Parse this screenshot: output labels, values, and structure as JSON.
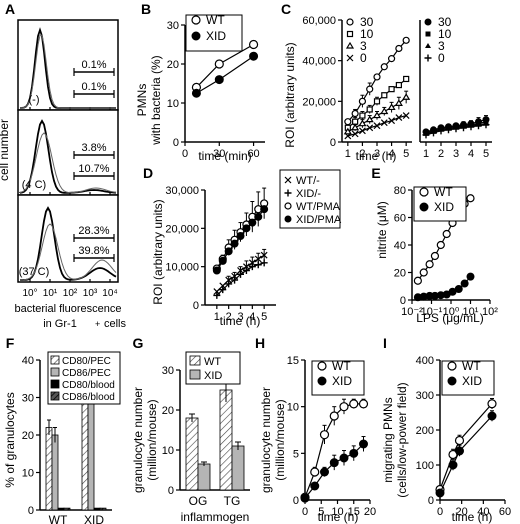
{
  "chart_data": [
    {
      "panel": "A",
      "type": "histogram",
      "xlabel": "bacterial fluorescence",
      "xlabel2": "in Gr-1",
      "ylabel": "cell number",
      "xticks": [
        "10°",
        "10¹",
        "10²",
        "10³",
        "10⁴"
      ],
      "subpanels": [
        {
          "label": "(-)",
          "gate_upper": "0.1%",
          "gate_lower": "0.1%"
        },
        {
          "label": "(4 C)",
          "gate_upper": "3.8%",
          "gate_lower": "10.7%"
        },
        {
          "label": "(37 C)",
          "gate_upper": "28.3%",
          "gate_lower": "39.8%"
        }
      ]
    },
    {
      "panel": "B",
      "type": "line",
      "xlabel": "time (min)",
      "ylabel": "PMNs with bacteria (%)",
      "xlim": [
        0,
        70
      ],
      "ylim": [
        0,
        30
      ],
      "xticks": [
        0,
        30,
        60
      ],
      "yticks": [
        0,
        10,
        20,
        30
      ],
      "series": [
        {
          "name": "WT",
          "marker": "open",
          "x": [
            10,
            30,
            60
          ],
          "y": [
            14,
            20,
            25
          ]
        },
        {
          "name": "XID",
          "marker": "filled",
          "x": [
            10,
            30,
            60
          ],
          "y": [
            12.5,
            16,
            22
          ]
        }
      ]
    },
    {
      "panel": "C",
      "type": "line",
      "xlabel": "time (h)",
      "ylabel": "ROI (arbitrary units)",
      "ylim": [
        0,
        60000
      ],
      "yticks": [
        0,
        20000,
        40000,
        60000
      ],
      "xticks": [
        1,
        2,
        3,
        4,
        5
      ],
      "groups": [
        {
          "legend": [
            "30",
            "10",
            "3",
            "0"
          ],
          "series": [
            {
              "name": "30",
              "marker": "circle-open",
              "x": [
                1,
                1.5,
                2,
                2.5,
                3,
                3.5,
                4,
                4.5,
                5
              ],
              "y": [
                10000,
                14000,
                20000,
                26000,
                32000,
                37000,
                41000,
                46000,
                50000
              ],
              "err": [
                0,
                2000,
                3000,
                3000,
                0,
                0,
                0,
                0,
                0
              ]
            },
            {
              "name": "10",
              "marker": "square-open",
              "x": [
                1,
                1.5,
                2,
                2.5,
                3,
                3.5,
                4,
                4.5,
                5
              ],
              "y": [
                7000,
                10000,
                13000,
                16000,
                20000,
                23000,
                26000,
                28000,
                31000
              ],
              "err": [
                0,
                2000,
                2000,
                2000,
                2000,
                0,
                0,
                0,
                0
              ]
            },
            {
              "name": "3",
              "marker": "triangle-open",
              "x": [
                1,
                1.5,
                2,
                2.5,
                3,
                3.5,
                4,
                4.5,
                5
              ],
              "y": [
                5000,
                7000,
                9000,
                11000,
                13000,
                15000,
                17000,
                19000,
                22000
              ],
              "err": [
                0,
                1500,
                2000,
                2000,
                2000,
                2000,
                2500,
                3000,
                3000
              ]
            },
            {
              "name": "0",
              "marker": "cross",
              "x": [
                1,
                1.5,
                2,
                2.5,
                3,
                3.5,
                4,
                4.5,
                5
              ],
              "y": [
                3000,
                4000,
                5500,
                7000,
                8000,
                9500,
                10500,
                12000,
                13000
              ],
              "err": [
                0,
                0,
                0,
                0,
                0,
                0,
                0,
                0,
                0
              ]
            }
          ]
        },
        {
          "legend": [
            "30",
            "10",
            "3",
            "0"
          ],
          "series": [
            {
              "name": "30",
              "marker": "circle-filled",
              "x": [
                1,
                1.5,
                2,
                2.5,
                3,
                3.5,
                4,
                4.5,
                5
              ],
              "y": [
                5000,
                6000,
                7000,
                7500,
                8000,
                8500,
                9000,
                10000,
                11000
              ],
              "err": [
                0,
                1000,
                1000,
                1000,
                1000,
                1500,
                1500,
                2000,
                2000
              ]
            },
            {
              "name": "10",
              "marker": "square-filled",
              "x": [
                1,
                1.5,
                2,
                2.5,
                3,
                3.5,
                4,
                4.5,
                5
              ],
              "y": [
                4500,
                5500,
                6500,
                7000,
                7500,
                8000,
                8500,
                9000,
                10000
              ],
              "err": [
                0,
                0,
                0,
                0,
                0,
                0,
                0,
                0,
                0
              ]
            },
            {
              "name": "3",
              "marker": "triangle-filled",
              "x": [
                1,
                1.5,
                2,
                2.5,
                3,
                3.5,
                4,
                4.5,
                5
              ],
              "y": [
                4000,
                5000,
                6000,
                6500,
                7000,
                7500,
                8000,
                8500,
                9000
              ],
              "err": [
                0,
                0,
                0,
                0,
                0,
                0,
                0,
                0,
                0
              ]
            },
            {
              "name": "0",
              "marker": "plus",
              "x": [
                1,
                1.5,
                2,
                2.5,
                3,
                3.5,
                4,
                4.5,
                5
              ],
              "y": [
                3500,
                4500,
                5500,
                6000,
                6500,
                7000,
                7500,
                8000,
                8500
              ],
              "err": [
                0,
                0,
                0,
                0,
                0,
                0,
                0,
                0,
                0
              ]
            }
          ]
        }
      ]
    },
    {
      "panel": "D",
      "type": "line",
      "xlabel": "time (h)",
      "ylabel": "ROI (arbitrary units)",
      "xlim": [
        0,
        6
      ],
      "ylim": [
        0,
        30000
      ],
      "xticks": [
        1,
        2,
        3,
        4,
        5
      ],
      "yticks": [
        0,
        10000,
        20000,
        30000
      ],
      "series": [
        {
          "name": "WT/-",
          "marker": "cross",
          "x": [
            1,
            1.5,
            2,
            2.5,
            3,
            3.5,
            4,
            4.5,
            5
          ],
          "y": [
            3500,
            5000,
            6500,
            7500,
            9000,
            10000,
            11000,
            12000,
            13000
          ],
          "err": [
            0,
            0,
            1000,
            1000,
            1000,
            1500,
            1500,
            1500,
            1500
          ]
        },
        {
          "name": "XID/-",
          "marker": "plus",
          "x": [
            1,
            1.5,
            2,
            2.5,
            3,
            3.5,
            4,
            4.5,
            5
          ],
          "y": [
            2500,
            4000,
            5500,
            6500,
            8000,
            9000,
            10000,
            10500,
            11000
          ],
          "err": [
            0,
            0,
            0,
            0,
            0,
            0,
            0,
            0,
            0
          ]
        },
        {
          "name": "WT/PMA",
          "marker": "open",
          "x": [
            1,
            1.5,
            2,
            2.5,
            3,
            3.5,
            4,
            4.5,
            5
          ],
          "y": [
            9500,
            12000,
            15000,
            17000,
            19000,
            21000,
            23000,
            25000,
            26500
          ],
          "err": [
            0,
            1000,
            2000,
            2500,
            2500,
            3000,
            4000,
            4500,
            4000
          ]
        },
        {
          "name": "XID/PMA",
          "marker": "filled",
          "x": [
            1,
            1.5,
            2,
            2.5,
            3,
            3.5,
            4,
            4.5,
            5
          ],
          "y": [
            9000,
            11500,
            14000,
            16000,
            18000,
            20000,
            21500,
            23000,
            25000
          ],
          "err": [
            0,
            0,
            0,
            0,
            0,
            0,
            0,
            0,
            0
          ]
        }
      ]
    },
    {
      "panel": "E",
      "type": "line",
      "xscale": "log",
      "xlabel": "LPS (μg/mL)",
      "ylabel": "nitrite (μM)",
      "xlim": [
        0.01,
        100
      ],
      "ylim": [
        0,
        80
      ],
      "xticks": [
        "10⁻²",
        "10⁻¹",
        "10⁰",
        "10¹",
        "10²"
      ],
      "yticks": [
        0,
        20,
        40,
        60,
        80
      ],
      "series": [
        {
          "name": "WT",
          "marker": "open",
          "x": [
            0.02,
            0.04,
            0.08,
            0.15,
            0.3,
            0.6,
            1.2,
            2.5,
            5,
            10
          ],
          "y": [
            14,
            20,
            26,
            32,
            40,
            48,
            56,
            63,
            70,
            74
          ]
        },
        {
          "name": "XID",
          "marker": "filled",
          "x": [
            0.02,
            0.04,
            0.08,
            0.15,
            0.3,
            0.6,
            1.2,
            2.5,
            5,
            10
          ],
          "y": [
            2,
            2.5,
            3,
            3,
            3.5,
            4,
            6,
            8,
            12,
            17
          ]
        }
      ]
    },
    {
      "panel": "F",
      "type": "bar",
      "ylabel": "% of granulocytes",
      "categories": [
        "WT",
        "XID"
      ],
      "ylim": [
        0,
        40
      ],
      "yticks": [
        0,
        10,
        20,
        30,
        40
      ],
      "series": [
        {
          "name": "CD80/PEC",
          "fill": "hatch",
          "values": [
            22,
            36
          ],
          "err": [
            2,
            3
          ]
        },
        {
          "name": "CD86/PEC",
          "fill": "gray",
          "values": [
            20,
            33
          ],
          "err": [
            2,
            3
          ]
        },
        {
          "name": "CD80/blood",
          "fill": "black",
          "values": [
            0.5,
            0.5
          ],
          "err": [
            0,
            0
          ]
        },
        {
          "name": "CD86/blood",
          "fill": "darkhatch",
          "values": [
            0.5,
            0.5
          ],
          "err": [
            0,
            0
          ]
        }
      ]
    },
    {
      "panel": "G",
      "type": "bar",
      "xlabel": "inflammogen",
      "ylabel": "granulocyte number (million/mouse)",
      "categories": [
        "OG",
        "TG"
      ],
      "ylim": [
        0,
        30
      ],
      "yticks": [
        0,
        10,
        20,
        30
      ],
      "series": [
        {
          "name": "WT",
          "fill": "hatch",
          "values": [
            18,
            25
          ],
          "err": [
            1,
            3
          ]
        },
        {
          "name": "XID",
          "fill": "gray",
          "values": [
            6.5,
            11
          ],
          "err": [
            0.5,
            1
          ]
        }
      ]
    },
    {
      "panel": "H",
      "type": "line",
      "xlabel": "time (h)",
      "ylabel": "granulocyte number (million/mouse)",
      "xlim": [
        0,
        20
      ],
      "ylim": [
        0,
        15
      ],
      "xticks": [
        0,
        5,
        10,
        15,
        20
      ],
      "yticks": [
        0,
        5,
        10,
        15
      ],
      "series": [
        {
          "name": "WT",
          "marker": "open",
          "x": [
            0,
            3,
            6,
            9,
            12,
            15,
            18
          ],
          "y": [
            0.3,
            3,
            7,
            9,
            10,
            10.3,
            10.3
          ],
          "err": [
            0,
            0.5,
            1,
            1,
            0.8,
            0.5,
            0.5
          ]
        },
        {
          "name": "XID",
          "marker": "filled",
          "x": [
            0,
            3,
            6,
            9,
            12,
            15,
            18
          ],
          "y": [
            0.2,
            1.5,
            3,
            4,
            4.5,
            5,
            6
          ],
          "err": [
            0,
            0.3,
            0.5,
            0.8,
            0.8,
            0.8,
            0.8
          ]
        }
      ]
    },
    {
      "panel": "I",
      "type": "line",
      "xlabel": "time (h)",
      "ylabel": "migrating PMNs (cells/low-power field)",
      "xlim": [
        0,
        60
      ],
      "ylim": [
        0,
        400
      ],
      "xticks": [
        0,
        20,
        40,
        60
      ],
      "yticks": [
        0,
        100,
        200,
        300,
        400
      ],
      "series": [
        {
          "name": "WT",
          "marker": "open",
          "x": [
            0,
            12,
            18,
            48
          ],
          "y": [
            30,
            130,
            170,
            275
          ],
          "err": [
            0,
            15,
            15,
            15
          ]
        },
        {
          "name": "XID",
          "marker": "filled",
          "x": [
            0,
            12,
            18,
            48
          ],
          "y": [
            20,
            100,
            140,
            240
          ],
          "err": [
            0,
            15,
            15,
            15
          ]
        }
      ]
    }
  ]
}
